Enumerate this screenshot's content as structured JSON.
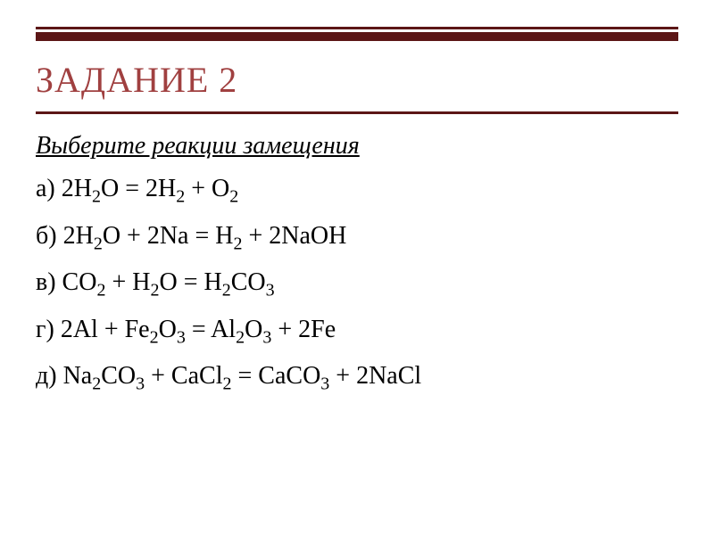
{
  "styling": {
    "background_color": "#ffffff",
    "accent_color": "#5c1616",
    "title_color": "#a04040",
    "text_color": "#000000",
    "title_fontsize": 40,
    "body_fontsize": 28,
    "subscript_fontsize": 20,
    "font_family": "Times New Roman",
    "top_bar_thin_height": 3,
    "top_bar_thick_height": 10,
    "divider_height": 3
  },
  "title": "ЗАДАНИЕ 2",
  "instruction": "Выберите реакции замещения",
  "equations": {
    "a": {
      "label": "а) ",
      "parts": [
        "2H",
        "2",
        "O = 2H",
        "2",
        " + O",
        "2"
      ]
    },
    "b": {
      "label": "б) ",
      "parts": [
        "2H",
        "2",
        "O + 2Na = H",
        "2",
        " + 2NaOH"
      ]
    },
    "c": {
      "label": "в) ",
      "parts": [
        "CO",
        "2",
        " + H",
        "2",
        "O = H",
        "2",
        "CO",
        "3"
      ]
    },
    "d": {
      "label": "г) ",
      "parts": [
        "2Al + Fe",
        "2",
        "O",
        "3",
        " = Al",
        "2",
        "O",
        "3",
        " + 2Fe"
      ]
    },
    "e": {
      "label": "д) ",
      "parts": [
        "Na",
        "2",
        "CO",
        "3",
        " + CaCl",
        "2",
        " = CaCO",
        "3",
        " + 2NaCl"
      ]
    }
  }
}
